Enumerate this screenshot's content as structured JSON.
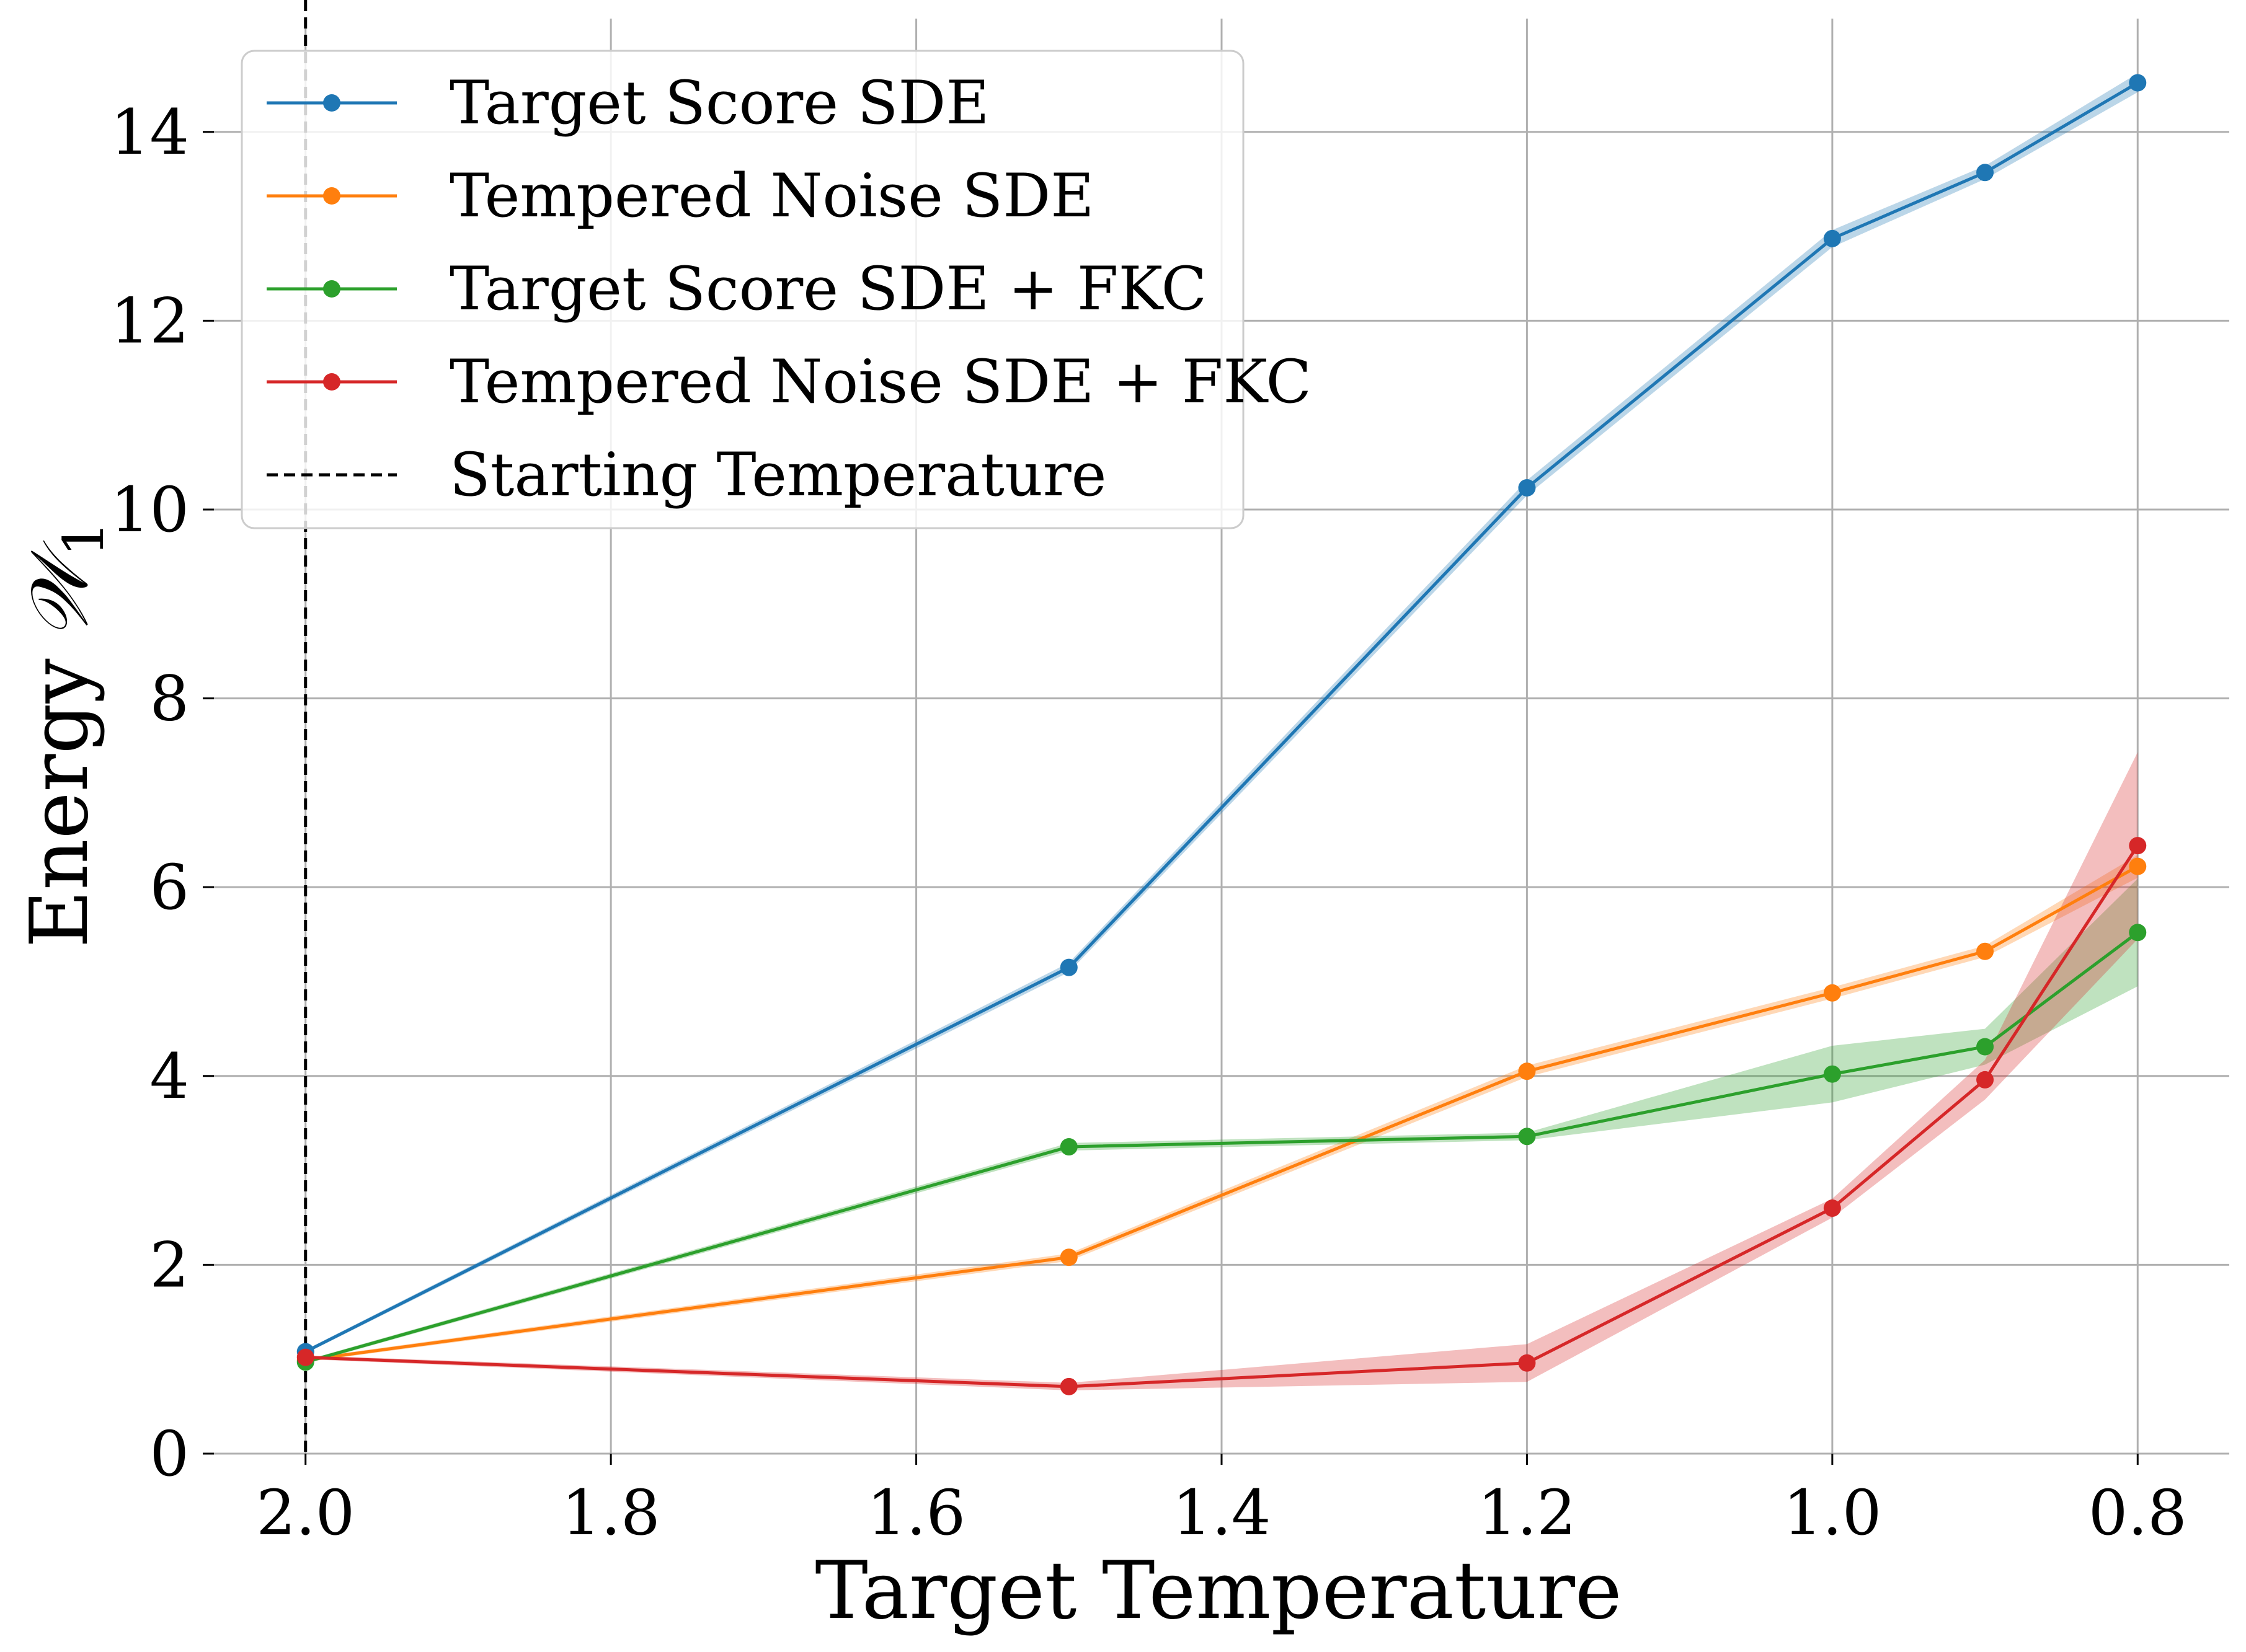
{
  "chart_data": {
    "type": "line",
    "title": "",
    "xlabel": "Target Temperature",
    "ylabel": "Energy",
    "ylabel_symbol": "𝒲",
    "ylabel_subscript": "1",
    "x_reversed": true,
    "xlim": [
      2.06,
      0.74
    ],
    "ylim": [
      0,
      15.2
    ],
    "xticks": [
      {
        "value": 2.0,
        "label": "2.0"
      },
      {
        "value": 1.8,
        "label": "1.8"
      },
      {
        "value": 1.6,
        "label": "1.6"
      },
      {
        "value": 1.4,
        "label": "1.4"
      },
      {
        "value": 1.2,
        "label": "1.2"
      },
      {
        "value": 1.0,
        "label": "1.0"
      },
      {
        "value": 0.8,
        "label": "0.8"
      }
    ],
    "yticks": [
      {
        "value": 0,
        "label": "0"
      },
      {
        "value": 2,
        "label": "2"
      },
      {
        "value": 4,
        "label": "4"
      },
      {
        "value": 6,
        "label": "6"
      },
      {
        "value": 8,
        "label": "8"
      },
      {
        "value": 10,
        "label": "10"
      },
      {
        "value": 12,
        "label": "12"
      },
      {
        "value": 14,
        "label": "14"
      }
    ],
    "grid": true,
    "legend_position": "top-left",
    "x": [
      2.0,
      1.5,
      1.2,
      1.0,
      0.9,
      0.8
    ],
    "series": [
      {
        "name": "Target Score SDE",
        "color": "#1f77b4",
        "values": [
          1.08,
          5.15,
          10.23,
          12.87,
          13.57,
          14.52
        ],
        "band_lower": [
          1.06,
          5.1,
          10.15,
          12.78,
          13.5,
          14.42
        ],
        "band_upper": [
          1.1,
          5.2,
          10.31,
          12.96,
          13.64,
          14.62
        ]
      },
      {
        "name": "Tempered Noise SDE",
        "color": "#ff7f0e",
        "values": [
          0.99,
          2.08,
          4.05,
          4.88,
          5.32,
          6.22
        ],
        "band_lower": [
          0.97,
          2.04,
          3.99,
          4.82,
          5.26,
          6.1
        ],
        "band_upper": [
          1.01,
          2.12,
          4.11,
          4.94,
          5.38,
          6.34
        ]
      },
      {
        "name": "Target Score SDE + FKC",
        "color": "#2ca02c",
        "values": [
          0.97,
          3.25,
          3.36,
          4.02,
          4.31,
          5.52
        ],
        "band_lower": [
          0.95,
          3.21,
          3.32,
          3.72,
          4.12,
          4.95
        ],
        "band_upper": [
          0.99,
          3.29,
          3.4,
          4.32,
          4.5,
          6.09
        ]
      },
      {
        "name": "Tempered Noise SDE + FKC",
        "color": "#d62728",
        "values": [
          1.02,
          0.71,
          0.96,
          2.6,
          3.96,
          6.44
        ],
        "band_lower": [
          1.0,
          0.67,
          0.76,
          2.5,
          3.75,
          5.45
        ],
        "band_upper": [
          1.04,
          0.75,
          1.16,
          2.7,
          4.17,
          7.43
        ]
      }
    ],
    "reference_line": {
      "name": "Starting Temperature",
      "x": 2.0,
      "color": "#000000",
      "style": "dashed"
    }
  }
}
